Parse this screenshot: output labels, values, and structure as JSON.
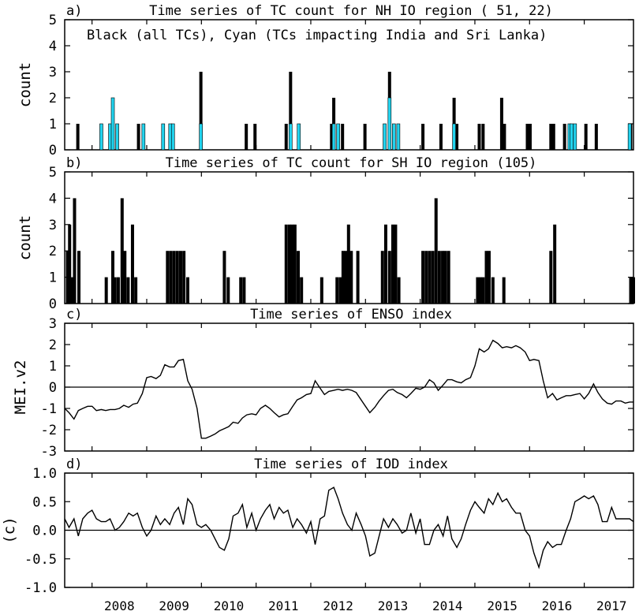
{
  "colors": {
    "all_tcs": "#000000",
    "india_srilanka_tcs": "#22d3ee",
    "line": "#000000"
  },
  "x_axis": {
    "start_year": 2007.5,
    "end_year": 2017.9,
    "years": [
      "2008",
      "2009",
      "2010",
      "2011",
      "2012",
      "2013",
      "2014",
      "2015",
      "2016",
      "2017"
    ]
  },
  "chart_data": [
    {
      "type": "bar",
      "panel_label": "a)",
      "title": "Time series of TC count for NH IO region ( 51, 22)",
      "annotation": "Black (all TCs), Cyan (TCs impacting India and Sri Lanka)",
      "ylabel": "count",
      "ylim": [
        0,
        5
      ],
      "yticks": [
        "0",
        "1",
        "2",
        "3",
        "4",
        "5"
      ],
      "series": [
        {
          "name": "all TCs",
          "color": "black",
          "points": [
            [
              2007.74,
              1
            ],
            [
              2008.17,
              1
            ],
            [
              2008.33,
              1
            ],
            [
              2008.38,
              2
            ],
            [
              2008.46,
              1
            ],
            [
              2008.85,
              1
            ],
            [
              2008.94,
              1
            ],
            [
              2009.3,
              1
            ],
            [
              2009.43,
              1
            ],
            [
              2009.48,
              1
            ],
            [
              2009.99,
              3
            ],
            [
              2010.82,
              1
            ],
            [
              2010.98,
              1
            ],
            [
              2011.55,
              1
            ],
            [
              2011.63,
              3
            ],
            [
              2011.78,
              1
            ],
            [
              2012.38,
              1
            ],
            [
              2012.42,
              2
            ],
            [
              2012.5,
              1
            ],
            [
              2012.58,
              1
            ],
            [
              2012.99,
              1
            ],
            [
              2013.35,
              1
            ],
            [
              2013.44,
              3
            ],
            [
              2013.52,
              1
            ],
            [
              2013.6,
              1
            ],
            [
              2014.05,
              1
            ],
            [
              2014.38,
              1
            ],
            [
              2014.62,
              2
            ],
            [
              2014.67,
              1
            ],
            [
              2015.08,
              1
            ],
            [
              2015.15,
              1
            ],
            [
              2015.49,
              2
            ],
            [
              2015.54,
              1
            ],
            [
              2015.96,
              1
            ],
            [
              2016.01,
              1
            ],
            [
              2016.39,
              1
            ],
            [
              2016.44,
              1
            ],
            [
              2016.64,
              1
            ],
            [
              2016.73,
              1
            ],
            [
              2016.77,
              1
            ],
            [
              2016.83,
              1
            ],
            [
              2017.03,
              1
            ],
            [
              2017.22,
              1
            ],
            [
              2017.83,
              1
            ],
            [
              2017.85,
              1
            ]
          ]
        },
        {
          "name": "TCs impacting India and Sri Lanka",
          "color": "cyan",
          "points": [
            [
              2008.17,
              1
            ],
            [
              2008.33,
              1
            ],
            [
              2008.38,
              2
            ],
            [
              2008.46,
              1
            ],
            [
              2008.94,
              1
            ],
            [
              2009.3,
              1
            ],
            [
              2009.43,
              1
            ],
            [
              2009.48,
              1
            ],
            [
              2009.99,
              1
            ],
            [
              2011.63,
              1
            ],
            [
              2011.78,
              1
            ],
            [
              2012.42,
              1
            ],
            [
              2012.5,
              1
            ],
            [
              2013.35,
              1
            ],
            [
              2013.44,
              2
            ],
            [
              2013.52,
              1
            ],
            [
              2013.6,
              1
            ],
            [
              2014.62,
              1
            ],
            [
              2016.73,
              1
            ],
            [
              2016.77,
              1
            ],
            [
              2016.83,
              1
            ],
            [
              2017.83,
              1
            ]
          ]
        }
      ]
    },
    {
      "type": "bar",
      "panel_label": "b)",
      "title": "Time series of TC count for SH IO region (105)",
      "ylabel": "count",
      "ylim": [
        0,
        5
      ],
      "yticks": [
        "0",
        "1",
        "2",
        "3",
        "4",
        "5"
      ],
      "series": [
        {
          "name": "all TCs",
          "color": "black",
          "points": [
            [
              2007.55,
              2
            ],
            [
              2007.59,
              3
            ],
            [
              2007.63,
              1
            ],
            [
              2007.68,
              4
            ],
            [
              2007.76,
              2
            ],
            [
              2008.26,
              1
            ],
            [
              2008.38,
              2
            ],
            [
              2008.42,
              1
            ],
            [
              2008.48,
              1
            ],
            [
              2008.55,
              4
            ],
            [
              2008.6,
              2
            ],
            [
              2008.66,
              1
            ],
            [
              2008.74,
              3
            ],
            [
              2008.8,
              1
            ],
            [
              2009.38,
              2
            ],
            [
              2009.44,
              2
            ],
            [
              2009.5,
              2
            ],
            [
              2009.56,
              2
            ],
            [
              2009.62,
              2
            ],
            [
              2009.68,
              2
            ],
            [
              2009.75,
              1
            ],
            [
              2010.42,
              2
            ],
            [
              2010.49,
              1
            ],
            [
              2010.72,
              1
            ],
            [
              2010.78,
              1
            ],
            [
              2011.55,
              3
            ],
            [
              2011.61,
              3
            ],
            [
              2011.66,
              3
            ],
            [
              2011.71,
              3
            ],
            [
              2011.77,
              2
            ],
            [
              2011.83,
              1
            ],
            [
              2012.2,
              1
            ],
            [
              2012.48,
              1
            ],
            [
              2012.54,
              1
            ],
            [
              2012.59,
              2
            ],
            [
              2012.64,
              2
            ],
            [
              2012.69,
              3
            ],
            [
              2012.74,
              2
            ],
            [
              2012.86,
              2
            ],
            [
              2013.31,
              2
            ],
            [
              2013.37,
              3
            ],
            [
              2013.44,
              2
            ],
            [
              2013.5,
              3
            ],
            [
              2013.55,
              3
            ],
            [
              2013.61,
              1
            ],
            [
              2014.05,
              2
            ],
            [
              2014.11,
              2
            ],
            [
              2014.17,
              2
            ],
            [
              2014.23,
              2
            ],
            [
              2014.29,
              4
            ],
            [
              2014.35,
              2
            ],
            [
              2014.41,
              2
            ],
            [
              2014.46,
              2
            ],
            [
              2014.52,
              2
            ],
            [
              2015.05,
              1
            ],
            [
              2015.1,
              1
            ],
            [
              2015.15,
              1
            ],
            [
              2015.21,
              2
            ],
            [
              2015.26,
              2
            ],
            [
              2015.33,
              1
            ],
            [
              2015.53,
              1
            ],
            [
              2016.39,
              2
            ],
            [
              2016.46,
              3
            ],
            [
              2017.85,
              1
            ],
            [
              2017.9,
              1
            ]
          ]
        }
      ]
    },
    {
      "type": "line",
      "panel_label": "c)",
      "title": "Time series of ENSO index",
      "ylabel": "MEI.v2",
      "ylim": [
        -3,
        3
      ],
      "yticks": [
        "-3",
        "-2",
        "-1",
        "0",
        "1",
        "2",
        "3"
      ],
      "reference_line": 0,
      "x": [
        2007.5,
        2007.58,
        2007.67,
        2007.75,
        2007.83,
        2007.92,
        2008.0,
        2008.08,
        2008.17,
        2008.25,
        2008.33,
        2008.42,
        2008.5,
        2008.58,
        2008.67,
        2008.75,
        2008.83,
        2008.92,
        2009.0,
        2009.08,
        2009.17,
        2009.25,
        2009.33,
        2009.42,
        2009.5,
        2009.58,
        2009.67,
        2009.75,
        2009.83,
        2009.92,
        2010.0,
        2010.08,
        2010.17,
        2010.25,
        2010.33,
        2010.42,
        2010.5,
        2010.58,
        2010.67,
        2010.75,
        2010.83,
        2010.92,
        2011.0,
        2011.08,
        2011.17,
        2011.25,
        2011.33,
        2011.42,
        2011.5,
        2011.58,
        2011.67,
        2011.75,
        2011.83,
        2011.92,
        2012.0,
        2012.08,
        2012.17,
        2012.25,
        2012.33,
        2012.42,
        2012.5,
        2012.58,
        2012.67,
        2012.75,
        2012.83,
        2012.92,
        2013.0,
        2013.08,
        2013.17,
        2013.25,
        2013.33,
        2013.42,
        2013.5,
        2013.58,
        2013.67,
        2013.75,
        2013.83,
        2013.92,
        2014.0,
        2014.08,
        2014.17,
        2014.25,
        2014.33,
        2014.42,
        2014.5,
        2014.58,
        2014.67,
        2014.75,
        2014.83,
        2014.92,
        2015.0,
        2015.08,
        2015.17,
        2015.25,
        2015.33,
        2015.42,
        2015.5,
        2015.58,
        2015.67,
        2015.75,
        2015.83,
        2015.92,
        2016.0,
        2016.08,
        2016.17,
        2016.25,
        2016.33,
        2016.42,
        2016.5,
        2016.58,
        2016.67,
        2016.75,
        2016.83,
        2016.92,
        2017.0,
        2017.08,
        2017.17,
        2017.25,
        2017.33,
        2017.42,
        2017.5,
        2017.58,
        2017.67,
        2017.75,
        2017.83,
        2017.9
      ],
      "values": [
        -1.0,
        -1.2,
        -1.5,
        -1.1,
        -1.0,
        -0.9,
        -0.9,
        -1.1,
        -1.05,
        -1.1,
        -1.05,
        -1.05,
        -1.0,
        -0.85,
        -0.95,
        -0.8,
        -0.75,
        -0.3,
        0.45,
        0.5,
        0.4,
        0.55,
        1.05,
        0.95,
        0.95,
        1.25,
        1.3,
        0.3,
        -0.1,
        -1.0,
        -2.4,
        -2.4,
        -2.3,
        -2.2,
        -2.05,
        -1.95,
        -1.85,
        -1.65,
        -1.7,
        -1.45,
        -1.3,
        -1.25,
        -1.3,
        -1.0,
        -0.85,
        -1.0,
        -1.2,
        -1.4,
        -1.3,
        -1.25,
        -0.9,
        -0.6,
        -0.5,
        -0.35,
        -0.3,
        0.3,
        -0.05,
        -0.35,
        -0.2,
        -0.15,
        -0.1,
        -0.15,
        -0.1,
        -0.15,
        -0.25,
        -0.6,
        -0.9,
        -1.2,
        -0.95,
        -0.65,
        -0.4,
        -0.15,
        -0.1,
        -0.25,
        -0.35,
        -0.5,
        -0.3,
        -0.05,
        -0.1,
        0.0,
        0.35,
        0.2,
        -0.15,
        0.1,
        0.35,
        0.35,
        0.25,
        0.2,
        0.35,
        0.45,
        1.0,
        1.8,
        1.65,
        1.8,
        2.2,
        2.05,
        1.85,
        1.9,
        1.85,
        1.95,
        1.85,
        1.65,
        1.25,
        1.3,
        1.25,
        0.3,
        -0.5,
        -0.3,
        -0.6,
        -0.5,
        -0.4,
        -0.4,
        -0.35,
        -0.3,
        -0.55,
        -0.3,
        0.15,
        -0.25,
        -0.55,
        -0.75,
        -0.8,
        -0.65,
        -0.65,
        -0.75,
        -0.7,
        -0.7
      ]
    },
    {
      "type": "line",
      "panel_label": "d)",
      "title": "Time series of IOD index",
      "ylabel": "(c)",
      "ylim": [
        -1.0,
        1.0
      ],
      "yticks": [
        "-1.0",
        "-0.5",
        "0.0",
        "0.5",
        "1.0"
      ],
      "reference_line": 0,
      "x": [
        2007.5,
        2007.58,
        2007.67,
        2007.75,
        2007.83,
        2007.92,
        2008.0,
        2008.08,
        2008.17,
        2008.25,
        2008.33,
        2008.42,
        2008.5,
        2008.58,
        2008.67,
        2008.75,
        2008.83,
        2008.92,
        2009.0,
        2009.08,
        2009.17,
        2009.25,
        2009.33,
        2009.42,
        2009.5,
        2009.58,
        2009.67,
        2009.75,
        2009.83,
        2009.92,
        2010.0,
        2010.08,
        2010.17,
        2010.25,
        2010.33,
        2010.42,
        2010.5,
        2010.58,
        2010.67,
        2010.75,
        2010.83,
        2010.92,
        2011.0,
        2011.08,
        2011.17,
        2011.25,
        2011.33,
        2011.42,
        2011.5,
        2011.58,
        2011.67,
        2011.75,
        2011.83,
        2011.92,
        2012.0,
        2012.08,
        2012.17,
        2012.25,
        2012.33,
        2012.42,
        2012.5,
        2012.58,
        2012.67,
        2012.75,
        2012.83,
        2012.92,
        2013.0,
        2013.08,
        2013.17,
        2013.25,
        2013.33,
        2013.42,
        2013.5,
        2013.58,
        2013.67,
        2013.75,
        2013.83,
        2013.92,
        2014.0,
        2014.08,
        2014.17,
        2014.25,
        2014.33,
        2014.42,
        2014.5,
        2014.58,
        2014.67,
        2014.75,
        2014.83,
        2014.92,
        2015.0,
        2015.08,
        2015.17,
        2015.25,
        2015.33,
        2015.42,
        2015.5,
        2015.58,
        2015.67,
        2015.75,
        2015.83,
        2015.92,
        2016.0,
        2016.08,
        2016.17,
        2016.25,
        2016.33,
        2016.42,
        2016.5,
        2016.58,
        2016.67,
        2016.75,
        2016.83,
        2016.92,
        2017.0,
        2017.08,
        2017.17,
        2017.25,
        2017.33,
        2017.42,
        2017.5,
        2017.58,
        2017.67,
        2017.75,
        2017.83,
        2017.9
      ],
      "values": [
        0.2,
        0.05,
        0.2,
        -0.1,
        0.2,
        0.3,
        0.35,
        0.2,
        0.15,
        0.15,
        0.2,
        0.0,
        0.05,
        0.15,
        0.3,
        0.25,
        0.3,
        0.05,
        -0.1,
        0.0,
        0.25,
        0.1,
        0.2,
        0.1,
        0.3,
        0.4,
        0.1,
        0.55,
        0.45,
        0.1,
        0.05,
        0.1,
        0.0,
        -0.15,
        -0.3,
        -0.35,
        -0.15,
        0.25,
        0.3,
        0.45,
        0.05,
        0.3,
        0.0,
        0.2,
        0.35,
        0.45,
        0.2,
        0.4,
        0.3,
        0.35,
        0.05,
        0.2,
        0.1,
        -0.05,
        0.15,
        -0.25,
        0.2,
        0.25,
        0.7,
        0.75,
        0.55,
        0.3,
        0.1,
        0.0,
        0.3,
        0.1,
        -0.1,
        -0.45,
        -0.4,
        -0.1,
        0.2,
        0.05,
        0.2,
        0.1,
        -0.05,
        0.0,
        0.3,
        -0.05,
        0.2,
        -0.25,
        -0.25,
        0.0,
        0.1,
        -0.1,
        0.25,
        -0.15,
        -0.3,
        -0.15,
        0.1,
        0.35,
        0.5,
        0.4,
        0.3,
        0.55,
        0.45,
        0.65,
        0.5,
        0.55,
        0.4,
        0.3,
        0.3,
        0.0,
        -0.1,
        -0.4,
        -0.65,
        -0.35,
        -0.2,
        -0.3,
        -0.25,
        -0.25,
        0.0,
        0.2,
        0.5,
        0.55,
        0.6,
        0.55,
        0.6,
        0.45,
        0.15,
        0.15,
        0.4,
        0.2,
        0.2,
        0.2,
        0.2,
        0.15
      ]
    }
  ]
}
